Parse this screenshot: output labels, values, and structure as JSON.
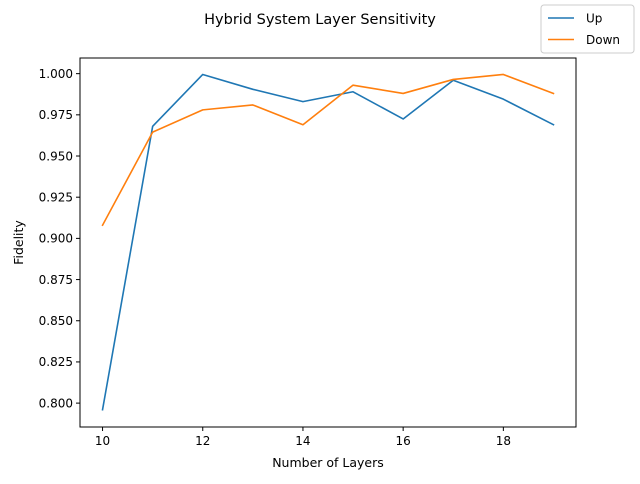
{
  "chart_data": {
    "type": "line",
    "title": "Hybrid System Layer Sensitivity",
    "xlabel": "Number of Layers",
    "ylabel": "Fidelity",
    "x": [
      10,
      11,
      12,
      13,
      14,
      15,
      16,
      17,
      18,
      19
    ],
    "xlim": [
      9.55,
      19.45
    ],
    "ylim": [
      0.7855,
      1.0095
    ],
    "xticks": [
      10,
      12,
      14,
      16,
      18
    ],
    "xtick_labels": [
      "10",
      "12",
      "14",
      "16",
      "18"
    ],
    "yticks": [
      0.8,
      0.825,
      0.85,
      0.875,
      0.9,
      0.925,
      0.95,
      0.975,
      1.0
    ],
    "ytick_labels": [
      "0.800",
      "0.825",
      "0.850",
      "0.875",
      "0.900",
      "0.925",
      "0.950",
      "0.975",
      "1.000"
    ],
    "grid": false,
    "legend_position": "top-right",
    "series": [
      {
        "name": "Up",
        "color": "#1f77b4",
        "values": [
          0.796,
          0.968,
          0.9995,
          0.9905,
          0.983,
          0.989,
          0.9725,
          0.996,
          0.9845,
          0.969
        ]
      },
      {
        "name": "Down",
        "color": "#ff7f0e",
        "values": [
          0.908,
          0.9645,
          0.978,
          0.981,
          0.969,
          0.993,
          0.988,
          0.9965,
          0.9995,
          0.988
        ]
      }
    ]
  }
}
